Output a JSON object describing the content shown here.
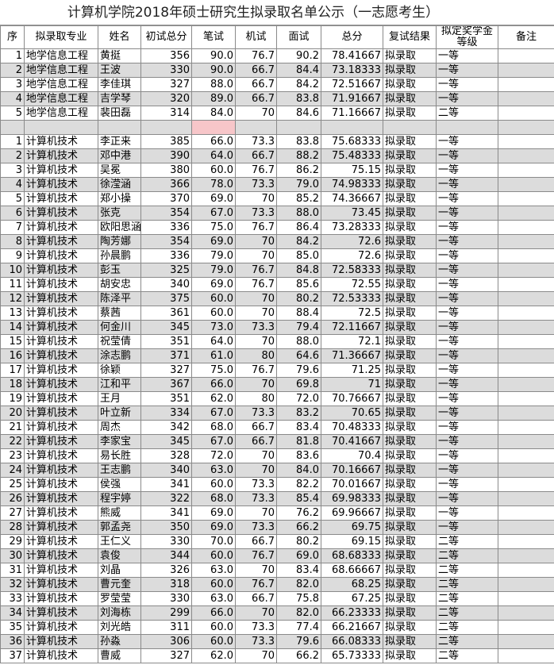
{
  "title": "计算机学院2018年硕士研究生拟录取名单公示（一志愿考生）",
  "table": {
    "headers": [
      "序",
      "拟录取专业",
      "姓名",
      "初试总分",
      "笔试",
      "机试",
      "面试",
      "总分",
      "复试结果",
      "拟定奖学金等级",
      "备注"
    ],
    "groups": [
      {
        "rows": [
          [
            "1",
            "地学信息工程",
            "黄挺",
            "356",
            "90.0",
            "76.7",
            "90.2",
            "78.41667",
            "拟录取",
            "一等"
          ],
          [
            "2",
            "地学信息工程",
            "王波",
            "330",
            "90.0",
            "66.7",
            "84.4",
            "73.18333",
            "拟录取",
            "一等"
          ],
          [
            "3",
            "地学信息工程",
            "李佳琪",
            "327",
            "88.0",
            "66.7",
            "84.2",
            "72.51667",
            "拟录取",
            "一等"
          ],
          [
            "4",
            "地学信息工程",
            "吉学琴",
            "320",
            "89.0",
            "66.7",
            "83.8",
            "71.91667",
            "拟录取",
            "一等"
          ],
          [
            "5",
            "地学信息工程",
            "裴田磊",
            "314",
            "84.0",
            "70",
            "84.6",
            "71.16667",
            "拟录取",
            "二等"
          ]
        ]
      },
      {
        "rows": [
          [
            "1",
            "计算机技术",
            "李正来",
            "385",
            "66.0",
            "73.3",
            "83.8",
            "75.68333",
            "拟录取",
            "一等"
          ],
          [
            "2",
            "计算机技术",
            "邓中港",
            "390",
            "64.0",
            "66.7",
            "88.2",
            "75.48333",
            "拟录取",
            "一等"
          ],
          [
            "3",
            "计算机技术",
            "吴冕",
            "380",
            "60.0",
            "76.7",
            "86.2",
            "75.15",
            "拟录取",
            "一等"
          ],
          [
            "4",
            "计算机技术",
            "徐滢涵",
            "366",
            "78.0",
            "73.3",
            "79.0",
            "74.98333",
            "拟录取",
            "一等"
          ],
          [
            "5",
            "计算机技术",
            "郑小操",
            "370",
            "69.0",
            "70",
            "85.2",
            "74.36667",
            "拟录取",
            "一等"
          ],
          [
            "6",
            "计算机技术",
            "张克",
            "354",
            "67.0",
            "73.3",
            "88.0",
            "73.45",
            "拟录取",
            "一等"
          ],
          [
            "7",
            "计算机技术",
            "欧阳思涵",
            "336",
            "75.0",
            "76.7",
            "86.4",
            "73.28333",
            "拟录取",
            "一等"
          ],
          [
            "8",
            "计算机技术",
            "陶芳娜",
            "354",
            "69.0",
            "70",
            "84.2",
            "72.6",
            "拟录取",
            "一等"
          ],
          [
            "9",
            "计算机技术",
            "孙晨鹏",
            "336",
            "79.0",
            "70",
            "85.0",
            "72.6",
            "拟录取",
            "一等"
          ],
          [
            "10",
            "计算机技术",
            "彭玉",
            "325",
            "79.0",
            "76.7",
            "84.8",
            "72.58333",
            "拟录取",
            "一等"
          ],
          [
            "11",
            "计算机技术",
            "胡安忠",
            "340",
            "69.0",
            "76.7",
            "85.6",
            "72.55",
            "拟录取",
            "一等"
          ],
          [
            "12",
            "计算机技术",
            "陈泽平",
            "375",
            "60.0",
            "70",
            "80.2",
            "72.53333",
            "拟录取",
            "一等"
          ],
          [
            "13",
            "计算机技术",
            "蔡茜",
            "361",
            "60.0",
            "70",
            "88.4",
            "72.5",
            "拟录取",
            "一等"
          ],
          [
            "14",
            "计算机技术",
            "何金川",
            "345",
            "73.0",
            "73.3",
            "79.4",
            "72.11667",
            "拟录取",
            "一等"
          ],
          [
            "15",
            "计算机技术",
            "祝莹倩",
            "351",
            "64.0",
            "70",
            "88.0",
            "72.1",
            "拟录取",
            "一等"
          ],
          [
            "16",
            "计算机技术",
            "涂志鹏",
            "371",
            "61.0",
            "80",
            "64.6",
            "71.36667",
            "拟录取",
            "一等"
          ],
          [
            "17",
            "计算机技术",
            "徐颖",
            "327",
            "75.0",
            "76.7",
            "79.6",
            "71.25",
            "拟录取",
            "一等"
          ],
          [
            "18",
            "计算机技术",
            "江和平",
            "367",
            "66.0",
            "70",
            "69.8",
            "71",
            "拟录取",
            "一等"
          ],
          [
            "19",
            "计算机技术",
            "王月",
            "351",
            "62.0",
            "80",
            "72.0",
            "70.76667",
            "拟录取",
            "一等"
          ],
          [
            "20",
            "计算机技术",
            "叶立新",
            "334",
            "67.0",
            "73.3",
            "83.2",
            "70.65",
            "拟录取",
            "一等"
          ],
          [
            "21",
            "计算机技术",
            "周杰",
            "342",
            "68.0",
            "66.7",
            "83.4",
            "70.48333",
            "拟录取",
            "一等"
          ],
          [
            "22",
            "计算机技术",
            "李家宝",
            "345",
            "67.0",
            "66.7",
            "81.8",
            "70.41667",
            "拟录取",
            "一等"
          ],
          [
            "23",
            "计算机技术",
            "易长胜",
            "328",
            "72.0",
            "70",
            "83.6",
            "70.4",
            "拟录取",
            "一等"
          ],
          [
            "24",
            "计算机技术",
            "王志鹏",
            "340",
            "63.0",
            "70",
            "84.0",
            "70.16667",
            "拟录取",
            "一等"
          ],
          [
            "25",
            "计算机技术",
            "侯强",
            "341",
            "60.0",
            "73.3",
            "82.2",
            "70.01667",
            "拟录取",
            "一等"
          ],
          [
            "26",
            "计算机技术",
            "程宇婷",
            "322",
            "68.0",
            "73.3",
            "85.4",
            "69.98333",
            "拟录取",
            "一等"
          ],
          [
            "27",
            "计算机技术",
            "熊威",
            "341",
            "69.0",
            "70",
            "76.2",
            "69.96667",
            "拟录取",
            "一等"
          ],
          [
            "28",
            "计算机技术",
            "郭孟尧",
            "350",
            "69.0",
            "73.3",
            "66.2",
            "69.75",
            "拟录取",
            "一等"
          ],
          [
            "29",
            "计算机技术",
            "王仁义",
            "330",
            "70.0",
            "66.7",
            "80.2",
            "69.15",
            "拟录取",
            "二等"
          ],
          [
            "30",
            "计算机技术",
            "袁俊",
            "344",
            "60.0",
            "76.7",
            "69.0",
            "68.68333",
            "拟录取",
            "二等"
          ],
          [
            "31",
            "计算机技术",
            "刘晶",
            "326",
            "63.0",
            "70",
            "83.4",
            "68.66667",
            "拟录取",
            "二等"
          ],
          [
            "32",
            "计算机技术",
            "曹元奎",
            "318",
            "60.0",
            "76.7",
            "82.0",
            "68.25",
            "拟录取",
            "二等"
          ],
          [
            "33",
            "计算机技术",
            "罗莹莹",
            "330",
            "63.0",
            "66.7",
            "75.8",
            "67.25",
            "拟录取",
            "二等"
          ],
          [
            "34",
            "计算机技术",
            "刘海栋",
            "299",
            "66.0",
            "70",
            "82.0",
            "66.23333",
            "拟录取",
            "二等"
          ],
          [
            "35",
            "计算机技术",
            "刘光皓",
            "311",
            "60.0",
            "73.3",
            "77.4",
            "66.21667",
            "拟录取",
            "二等"
          ],
          [
            "36",
            "计算机技术",
            "孙淼",
            "306",
            "60.0",
            "73.3",
            "79.6",
            "66.08333",
            "拟录取",
            "二等"
          ],
          [
            "37",
            "计算机技术",
            "曹威",
            "327",
            "62.0",
            "70",
            "66.2",
            "65.73333",
            "拟录取",
            "二等"
          ]
        ]
      }
    ]
  }
}
